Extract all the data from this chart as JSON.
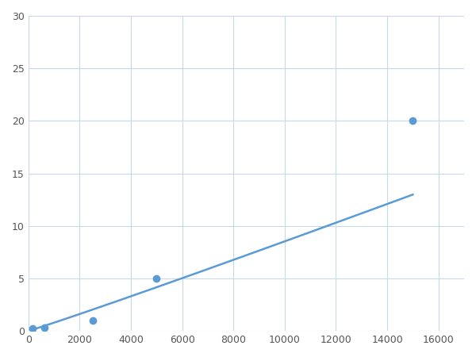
{
  "x": [
    156,
    625,
    2500,
    5000,
    15000
  ],
  "y": [
    0.2,
    0.3,
    1.0,
    5.0,
    20.0
  ],
  "line_color": "#5b9bd5",
  "marker_color": "#5b9bd5",
  "marker_size": 6,
  "line_width": 1.8,
  "xlim": [
    0,
    17000
  ],
  "ylim": [
    0,
    30
  ],
  "xticks": [
    0,
    2000,
    4000,
    6000,
    8000,
    10000,
    12000,
    14000,
    16000
  ],
  "yticks": [
    0,
    5,
    10,
    15,
    20,
    25,
    30
  ],
  "grid_color": "#c8d8e8",
  "background_color": "#ffffff",
  "figsize": [
    6.0,
    4.5
  ],
  "dpi": 100
}
